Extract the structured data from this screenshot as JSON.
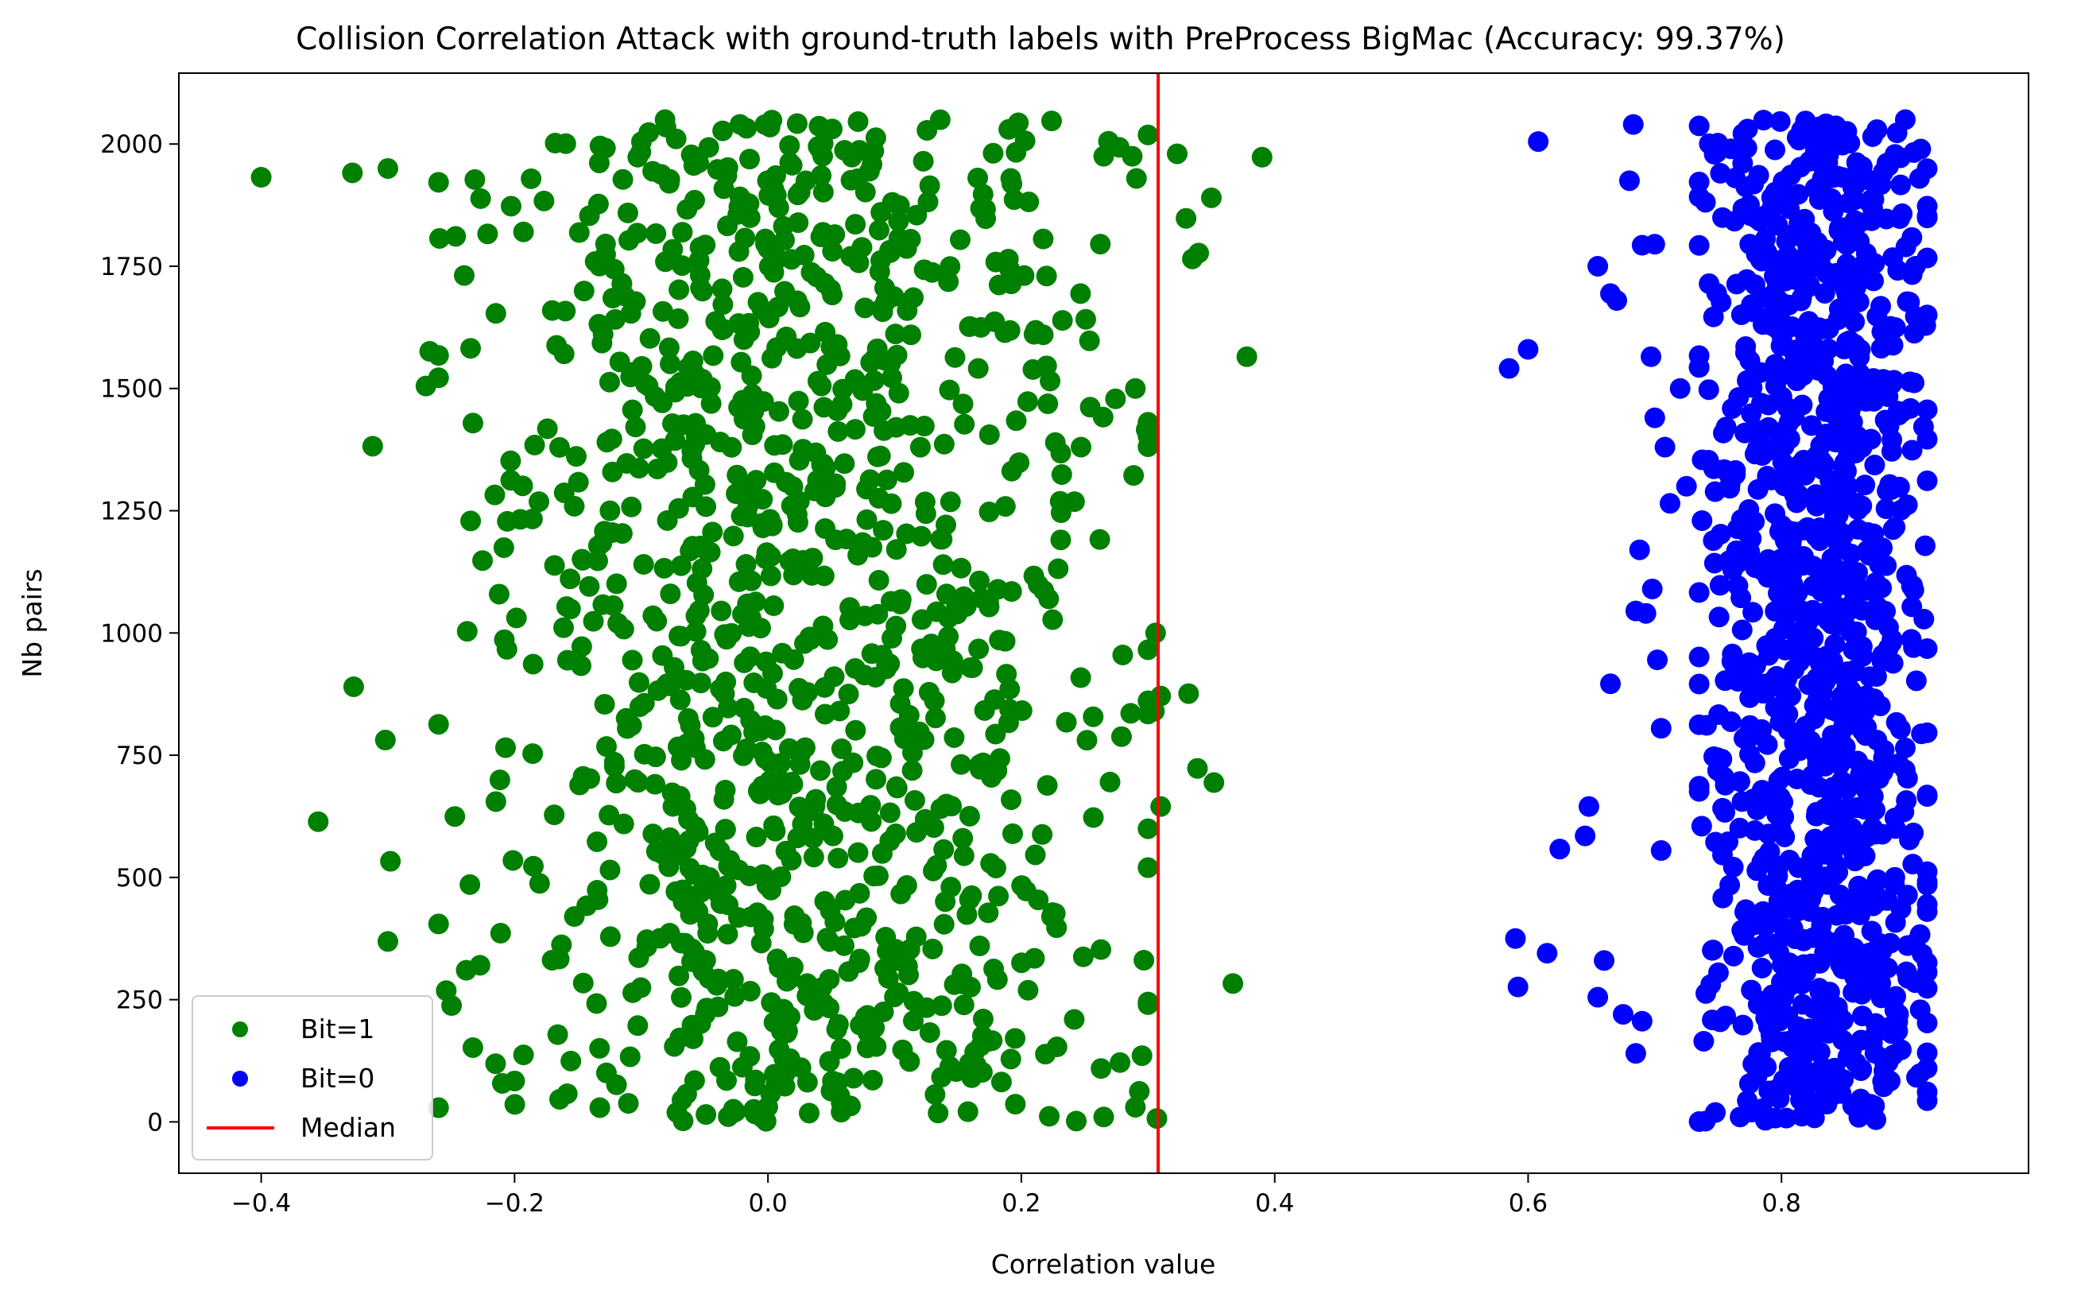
{
  "chart_data": {
    "type": "scatter",
    "title": "Collision Correlation Attack with ground-truth labels with PreProcess BigMac (Accuracy: 99.37%)",
    "xlabel": "Correlation value",
    "ylabel": "Nb pairs",
    "xlim": [
      -0.465,
      0.995
    ],
    "ylim": [
      -105,
      2145
    ],
    "xticks": [
      -0.4,
      -0.2,
      0.0,
      0.2,
      0.4,
      0.6,
      0.8
    ],
    "xtick_labels": [
      "−0.4",
      "−0.2",
      "0.0",
      "0.2",
      "0.4",
      "0.6",
      "0.8"
    ],
    "yticks": [
      0,
      250,
      500,
      750,
      1000,
      1250,
      1500,
      1750,
      2000
    ],
    "ytick_labels": [
      "0",
      "250",
      "500",
      "750",
      "1000",
      "1250",
      "1500",
      "1750",
      "2000"
    ],
    "grid": false,
    "legend_position": "lower-left",
    "median": {
      "name": "Median",
      "x": 0.308,
      "color": "#ff0000"
    },
    "series": [
      {
        "name": "Bit=1",
        "color": "#008000",
        "points_per_band": 54,
        "band_step": 2,
        "x_mean": 0.02,
        "x_spread": 0.12,
        "x_min": -0.26,
        "x_max": 0.3,
        "seed": 11,
        "outliers": [
          [
            -0.4,
            1932
          ],
          [
            -0.328,
            1941
          ],
          [
            -0.3,
            1950
          ],
          [
            -0.355,
            614
          ],
          [
            -0.327,
            890
          ],
          [
            -0.302,
            781
          ],
          [
            -0.3,
            369
          ],
          [
            -0.298,
            533
          ],
          [
            -0.312,
            1382
          ],
          [
            -0.267,
            1576
          ],
          [
            -0.27,
            1505
          ],
          [
            0.306,
            1000
          ],
          [
            0.31,
            871
          ],
          [
            0.305,
            840
          ],
          [
            0.31,
            645
          ],
          [
            0.307,
            7
          ],
          [
            0.323,
            1980
          ],
          [
            0.33,
            1848
          ],
          [
            0.35,
            1890
          ],
          [
            0.34,
            1777
          ],
          [
            0.335,
            1765
          ],
          [
            0.339,
            723
          ],
          [
            0.352,
            694
          ],
          [
            0.378,
            1565
          ],
          [
            0.367,
            283
          ],
          [
            0.39,
            1973
          ],
          [
            0.332,
            876
          ],
          [
            0.3,
            520
          ],
          [
            0.29,
            1500
          ],
          [
            0.29,
            30
          ],
          [
            0.265,
            10
          ],
          [
            0.265,
            1975
          ],
          [
            0.27,
            695
          ],
          [
            0.28,
            955
          ]
        ]
      },
      {
        "name": "Bit=0",
        "color": "#0000ff",
        "points_per_band": 54,
        "band_step": 2,
        "x_mean": 0.83,
        "x_spread": 0.045,
        "x_min": 0.735,
        "x_max": 0.915,
        "seed": 97,
        "outliers": [
          [
            0.585,
            1541
          ],
          [
            0.6,
            1580
          ],
          [
            0.608,
            2005
          ],
          [
            0.59,
            375
          ],
          [
            0.592,
            276
          ],
          [
            0.615,
            345
          ],
          [
            0.625,
            558
          ],
          [
            0.645,
            585
          ],
          [
            0.648,
            645
          ],
          [
            0.665,
            896
          ],
          [
            0.68,
            1925
          ],
          [
            0.683,
            2040
          ],
          [
            0.67,
            1680
          ],
          [
            0.665,
            1694
          ],
          [
            0.655,
            1750
          ],
          [
            0.685,
            1045
          ],
          [
            0.69,
            1793
          ],
          [
            0.7,
            1795
          ],
          [
            0.697,
            1565
          ],
          [
            0.69,
            206
          ],
          [
            0.7,
            1440
          ],
          [
            0.688,
            1170
          ],
          [
            0.693,
            1040
          ],
          [
            0.66,
            330
          ],
          [
            0.655,
            255
          ],
          [
            0.675,
            220
          ],
          [
            0.685,
            140
          ],
          [
            0.698,
            1090
          ],
          [
            0.705,
            805
          ],
          [
            0.705,
            555
          ],
          [
            0.708,
            1380
          ],
          [
            0.712,
            1265
          ],
          [
            0.702,
            945
          ],
          [
            0.72,
            1500
          ],
          [
            0.725,
            1300
          ]
        ]
      }
    ]
  },
  "legend": {
    "items": [
      {
        "label": "Bit=1",
        "color": "#008000",
        "kind": "marker"
      },
      {
        "label": "Bit=0",
        "color": "#0000ff",
        "kind": "marker"
      },
      {
        "label": "Median",
        "color": "#ff0000",
        "kind": "line"
      }
    ]
  }
}
